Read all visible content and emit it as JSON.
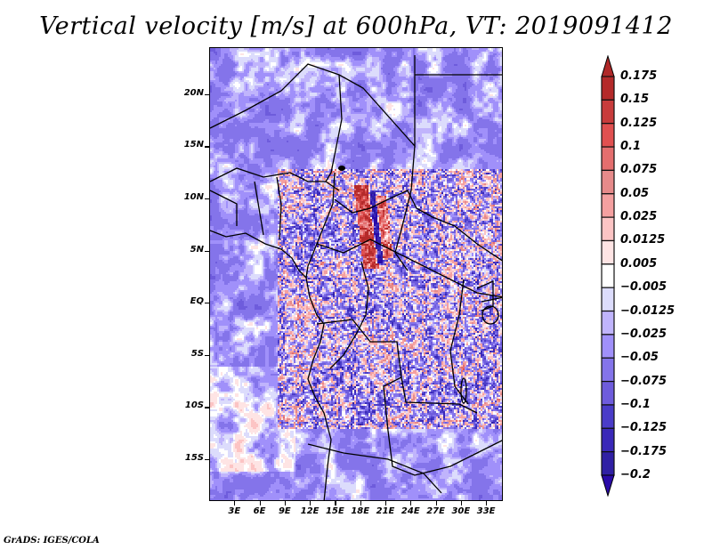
{
  "title": "Vertical velocity [m/s] at 600hPa, VT: 2019091412",
  "credit": "GrADS: IGES/COLA",
  "map": {
    "variable": "Vertical velocity",
    "units": "m/s",
    "level": "600hPa",
    "valid_time": "2019091412",
    "lon_range": [
      0,
      35
    ],
    "lat_range": [
      -19,
      24.5
    ],
    "lat_ticks": [
      {
        "value": 20,
        "label": "20N"
      },
      {
        "value": 15,
        "label": "15N"
      },
      {
        "value": 10,
        "label": "10N"
      },
      {
        "value": 5,
        "label": "5N"
      },
      {
        "value": 0,
        "label": "EQ"
      },
      {
        "value": -5,
        "label": "5S"
      },
      {
        "value": -10,
        "label": "10S"
      },
      {
        "value": -15,
        "label": "15S"
      }
    ],
    "lon_ticks": [
      {
        "value": 3,
        "label": "3E"
      },
      {
        "value": 6,
        "label": "6E"
      },
      {
        "value": 9,
        "label": "9E"
      },
      {
        "value": 12,
        "label": "12E"
      },
      {
        "value": 15,
        "label": "15E"
      },
      {
        "value": 18,
        "label": "18E"
      },
      {
        "value": 21,
        "label": "21E"
      },
      {
        "value": 24,
        "label": "24E"
      },
      {
        "value": 27,
        "label": "27E"
      },
      {
        "value": 30,
        "label": "30E"
      },
      {
        "value": 33,
        "label": "33E"
      }
    ]
  },
  "colorbar": {
    "top_arrow_color": "#b02828",
    "bottom_arrow_color": "#2a0aa8",
    "bins": [
      {
        "color": "#b42a2a",
        "label": "0.175"
      },
      {
        "color": "#c83c3c",
        "label": "0.15"
      },
      {
        "color": "#e05050",
        "label": "0.125"
      },
      {
        "color": "#e46e6e",
        "label": "0.1"
      },
      {
        "color": "#e68a8a",
        "label": "0.075"
      },
      {
        "color": "#f4a0a0",
        "label": "0.05"
      },
      {
        "color": "#fcc4c4",
        "label": "0.025"
      },
      {
        "color": "#fee4e4",
        "label": "0.0125"
      },
      {
        "color": "#ffffff",
        "label": "0.005"
      },
      {
        "color": "#dcdcfc",
        "label": "-0.005"
      },
      {
        "color": "#c0b4fc",
        "label": "-0.0125"
      },
      {
        "color": "#a090fa",
        "label": "-0.025"
      },
      {
        "color": "#8474ea",
        "label": "-0.05"
      },
      {
        "color": "#6e5cdc",
        "label": "-0.075"
      },
      {
        "color": "#4a3cc8",
        "label": "-0.1"
      },
      {
        "color": "#3a28b8",
        "label": "-0.125"
      },
      {
        "color": "#3020a4",
        "label": "-0.175"
      },
      {
        "color": "#2a0aa8",
        "label": "-0.2"
      }
    ]
  }
}
